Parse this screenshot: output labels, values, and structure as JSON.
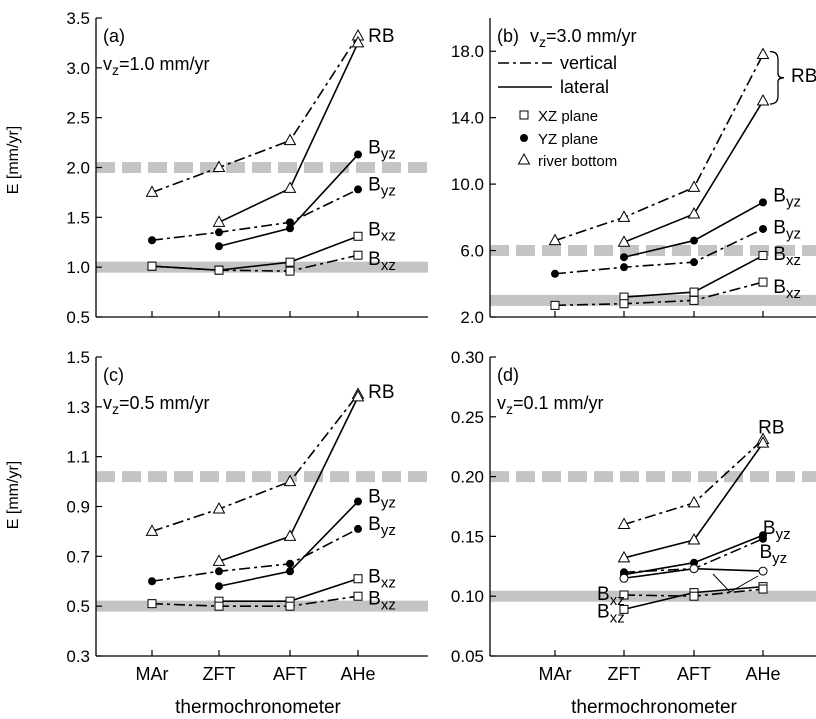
{
  "figure": {
    "ylabel": "E [mm/yr]",
    "xlabel": "thermochronometer",
    "categories": [
      "MAr",
      "ZFT",
      "AFT",
      "AHe"
    ],
    "legend": {
      "vertical": "vertical",
      "lateral": "lateral",
      "xz": "XZ plane",
      "yz": "YZ plane",
      "rb": "river bottom"
    }
  },
  "chart_data": [
    {
      "type": "line",
      "panel_label": "(a)",
      "vz_label": "v",
      "vz_sub": "z",
      "vz_value": "=1.0 mm/yr",
      "categories": [
        "MAr",
        "ZFT",
        "AFT",
        "AHe"
      ],
      "ylim": [
        0.5,
        3.5
      ],
      "yticks": [
        0.5,
        1.0,
        1.5,
        2.0,
        2.5,
        3.0,
        3.5
      ],
      "ytick_labels": [
        "0.5",
        "1.0",
        "1.5",
        "2.0",
        "2.5",
        "3.0",
        "3.5"
      ],
      "ref_solid": 1.0,
      "ref_dashed": 2.0,
      "series": [
        {
          "style": "dashdot",
          "marker": "triangle",
          "values": [
            1.75,
            2.0,
            2.27,
            3.32
          ]
        },
        {
          "style": "solid",
          "marker": "triangle",
          "values": [
            null,
            1.45,
            1.79,
            3.25
          ]
        },
        {
          "style": "solid",
          "marker": "circle",
          "values": [
            null,
            1.21,
            1.39,
            2.13
          ]
        },
        {
          "style": "dashdot",
          "marker": "circle",
          "values": [
            1.27,
            1.35,
            1.45,
            1.78
          ]
        },
        {
          "style": "solid",
          "marker": "square",
          "values": [
            1.01,
            0.97,
            1.05,
            1.31
          ]
        },
        {
          "style": "dashdot",
          "marker": "square",
          "values": [
            1.01,
            0.97,
            0.96,
            1.12
          ]
        }
      ],
      "annotations": [
        {
          "text": "RB",
          "sub": "",
          "x": 3.12,
          "y": 3.32
        },
        {
          "text": "B",
          "sub": "yz",
          "x": 3.12,
          "y": 2.2
        },
        {
          "text": "B",
          "sub": "yz",
          "x": 3.12,
          "y": 1.83
        },
        {
          "text": "B",
          "sub": "xz",
          "x": 3.12,
          "y": 1.38
        },
        {
          "text": "B",
          "sub": "xz",
          "x": 3.12,
          "y": 1.08
        }
      ]
    },
    {
      "type": "line",
      "panel_label": "(b)",
      "vz_label": "v",
      "vz_sub": "z",
      "vz_value": "=3.0 mm/yr",
      "categories": [
        "MAr",
        "ZFT",
        "AFT",
        "AHe"
      ],
      "ylim": [
        2.0,
        20.0
      ],
      "yticks": [
        2.0,
        6.0,
        10.0,
        14.0,
        18.0
      ],
      "ytick_labels": [
        "2.0",
        "6.0",
        "10.0",
        "14.0",
        "18.0"
      ],
      "ref_solid": 3.0,
      "ref_dashed": 6.0,
      "series": [
        {
          "style": "dashdot",
          "marker": "triangle",
          "values": [
            6.6,
            8.0,
            9.8,
            17.8
          ]
        },
        {
          "style": "solid",
          "marker": "triangle",
          "values": [
            null,
            6.5,
            8.2,
            15.0
          ]
        },
        {
          "style": "solid",
          "marker": "circle",
          "values": [
            null,
            5.6,
            6.6,
            8.9
          ]
        },
        {
          "style": "dashdot",
          "marker": "circle",
          "values": [
            4.6,
            5.0,
            5.3,
            7.3
          ]
        },
        {
          "style": "solid",
          "marker": "square",
          "values": [
            null,
            3.2,
            3.5,
            5.7
          ]
        },
        {
          "style": "dashdot",
          "marker": "square",
          "values": [
            2.7,
            2.8,
            3.0,
            4.1
          ]
        }
      ],
      "annotations": [
        {
          "text": "RB",
          "sub": "",
          "x": 3.2,
          "y": 16.5
        },
        {
          "text": "B",
          "sub": "yz",
          "x": 3.12,
          "y": 9.3
        },
        {
          "text": "B",
          "sub": "yz",
          "x": 3.12,
          "y": 7.4
        },
        {
          "text": "B",
          "sub": "xz",
          "x": 3.12,
          "y": 5.8
        },
        {
          "text": "B",
          "sub": "xz",
          "x": 3.12,
          "y": 3.8
        }
      ],
      "legend_entries": [
        {
          "key": "vertical",
          "sample": "dashdot"
        },
        {
          "key": "lateral",
          "sample": "solid"
        },
        {
          "key": "xz",
          "sample": "square"
        },
        {
          "key": "yz",
          "sample": "circle"
        },
        {
          "key": "rb",
          "sample": "triangle"
        }
      ]
    },
    {
      "type": "line",
      "panel_label": "(c)",
      "vz_label": "v",
      "vz_sub": "z",
      "vz_value": "=0.5 mm/yr",
      "categories": [
        "MAr",
        "ZFT",
        "AFT",
        "AHe"
      ],
      "ylim": [
        0.3,
        1.5
      ],
      "yticks": [
        0.3,
        0.5,
        0.7,
        0.9,
        1.1,
        1.3,
        1.5
      ],
      "ytick_labels": [
        "0.3",
        "0.5",
        "0.7",
        "0.9",
        "1.1",
        "1.3",
        "1.5"
      ],
      "ref_solid": 0.5,
      "ref_dashed": 1.02,
      "series": [
        {
          "style": "dashdot",
          "marker": "triangle",
          "values": [
            0.8,
            0.89,
            1.0,
            1.35
          ]
        },
        {
          "style": "solid",
          "marker": "triangle",
          "values": [
            null,
            0.68,
            0.78,
            1.34
          ]
        },
        {
          "style": "solid",
          "marker": "circle",
          "values": [
            null,
            0.58,
            0.64,
            0.92
          ]
        },
        {
          "style": "dashdot",
          "marker": "circle",
          "values": [
            0.6,
            0.64,
            0.67,
            0.81
          ]
        },
        {
          "style": "solid",
          "marker": "square",
          "values": [
            null,
            0.52,
            0.52,
            0.61
          ]
        },
        {
          "style": "dashdot",
          "marker": "square",
          "values": [
            0.51,
            0.5,
            0.5,
            0.54
          ]
        }
      ],
      "annotations": [
        {
          "text": "RB",
          "sub": "",
          "x": 3.12,
          "y": 1.36
        },
        {
          "text": "B",
          "sub": "yz",
          "x": 3.12,
          "y": 0.94
        },
        {
          "text": "B",
          "sub": "yz",
          "x": 3.12,
          "y": 0.83
        },
        {
          "text": "B",
          "sub": "xz",
          "x": 3.12,
          "y": 0.62
        },
        {
          "text": "B",
          "sub": "xz",
          "x": 3.12,
          "y": 0.53
        }
      ]
    },
    {
      "type": "line",
      "panel_label": "(d)",
      "vz_label": "v",
      "vz_sub": "z",
      "vz_value": "=0.1 mm/yr",
      "categories": [
        "MAr",
        "ZFT",
        "AFT",
        "AHe"
      ],
      "ylim": [
        0.05,
        0.3
      ],
      "yticks": [
        0.05,
        0.1,
        0.15,
        0.2,
        0.25,
        0.3
      ],
      "ytick_labels": [
        "0.05",
        "0.10",
        "0.15",
        "0.20",
        "0.25",
        "0.30"
      ],
      "ref_solid": 0.1,
      "ref_dashed": 0.2,
      "series": [
        {
          "style": "dashdot",
          "marker": "triangle",
          "values": [
            null,
            0.16,
            0.178,
            0.231
          ]
        },
        {
          "style": "solid",
          "marker": "triangle",
          "values": [
            null,
            0.132,
            0.147,
            0.228
          ]
        },
        {
          "style": "solid",
          "marker": "circle",
          "values": [
            null,
            0.118,
            0.128,
            0.151
          ]
        },
        {
          "style": "dashdot",
          "marker": "circle",
          "values": [
            null,
            0.12,
            0.123,
            0.148
          ]
        },
        {
          "style": "solid",
          "marker": "square",
          "values": [
            null,
            0.089,
            0.103,
            0.108
          ]
        },
        {
          "style": "dashdot",
          "marker": "square",
          "values": [
            null,
            0.101,
            0.1,
            0.106
          ]
        },
        {
          "style": "solid",
          "marker": "circle-open",
          "values": [
            null,
            0.115,
            0.123,
            0.121
          ]
        }
      ],
      "annotations": [
        {
          "text": "RB",
          "sub": "",
          "x": 2.9,
          "y": 0.241
        },
        {
          "text": "B",
          "sub": "yz",
          "x": 2.97,
          "y": 0.157
        },
        {
          "text": "B",
          "sub": "yz",
          "x": 2.92,
          "y": 0.137
        },
        {
          "text": "B",
          "sub": "xz",
          "x": 0.58,
          "y": 0.102
        },
        {
          "text": "B",
          "sub": "xz",
          "x": 0.58,
          "y": 0.087
        }
      ]
    }
  ]
}
